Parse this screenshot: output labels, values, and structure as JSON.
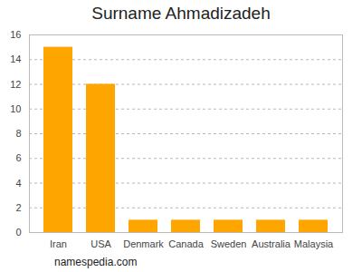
{
  "chart_data": {
    "type": "bar",
    "title": "Surname Ahmadizadeh",
    "categories": [
      "Iran",
      "USA",
      "Denmark",
      "Canada",
      "Sweden",
      "Australia",
      "Malaysia"
    ],
    "values": [
      15,
      12,
      1,
      1,
      1,
      1,
      1
    ],
    "color": "#ffa500",
    "ylim": [
      0,
      16
    ],
    "yticks": [
      0,
      2,
      4,
      6,
      8,
      10,
      12,
      14,
      16
    ],
    "grid": true,
    "caption": "namespedia.com"
  }
}
